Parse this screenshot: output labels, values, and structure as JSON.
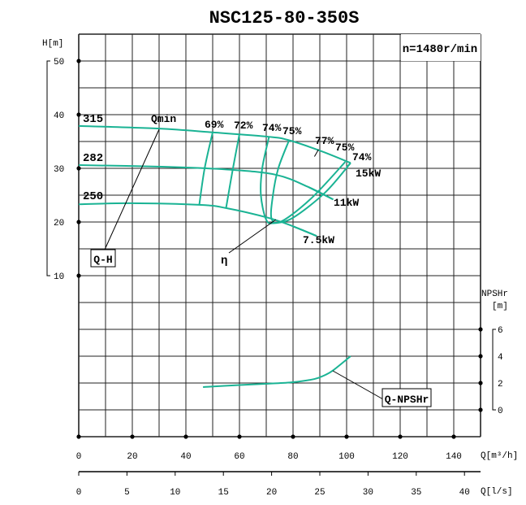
{
  "chart_data": {
    "type": "line",
    "title": "NSC125-80-350S",
    "speed_label": "n=1480r/min",
    "xlabel": "Q[m³/h]",
    "x2label": "Q[l/s]",
    "ylabel": "H[m]",
    "y2label_line1": "NPSHr",
    "y2label_line2": "[m]",
    "xlim": [
      0,
      150
    ],
    "ylim": [
      -20,
      55
    ],
    "x_ticks": [
      0,
      20,
      40,
      60,
      80,
      100,
      120,
      140
    ],
    "x2_ticks": [
      0,
      5,
      10,
      15,
      20,
      25,
      30,
      35,
      40
    ],
    "y_ticks": [
      10,
      20,
      30,
      40,
      50
    ],
    "y2_ticks": [
      0,
      2,
      4,
      6
    ],
    "grid": true,
    "curve_color": "#1ab394",
    "qh_curves": [
      {
        "name": "315",
        "points": [
          [
            0,
            37.9
          ],
          [
            30,
            37.4
          ],
          [
            50,
            36.7
          ],
          [
            70.6,
            35.9
          ],
          [
            78,
            35.3
          ],
          [
            90,
            33.3
          ],
          [
            101.5,
            31.0
          ]
        ]
      },
      {
        "name": "282",
        "points": [
          [
            0,
            30.6
          ],
          [
            31,
            30.3
          ],
          [
            55,
            29.8
          ],
          [
            73.6,
            28.8
          ],
          [
            85.8,
            26.5
          ],
          [
            95,
            24.2
          ]
        ]
      },
      {
        "name": "250",
        "points": [
          [
            0,
            23.3
          ],
          [
            19,
            23.5
          ],
          [
            45,
            23.2
          ],
          [
            55,
            22.6
          ],
          [
            70.6,
            20.8
          ],
          [
            80,
            19.2
          ],
          [
            88.8,
            17.4
          ]
        ]
      }
    ],
    "efficiency_curves": [
      {
        "name": "69%",
        "points": [
          [
            50,
            36.7
          ],
          [
            47,
            30
          ],
          [
            45,
            23.2
          ]
        ]
      },
      {
        "name": "72%",
        "points": [
          [
            60,
            36.4
          ],
          [
            57.5,
            29.8
          ],
          [
            55,
            22.6
          ]
        ]
      },
      {
        "name": "74%",
        "points": [
          [
            71,
            35.8
          ],
          [
            68.5,
            30
          ],
          [
            68,
            25
          ],
          [
            70,
            20.4
          ],
          [
            73,
            19.8
          ],
          [
            80,
            20.8
          ],
          [
            92,
            25.5
          ],
          [
            101.5,
            31.0
          ]
        ]
      },
      {
        "name": "75%",
        "points": [
          [
            78.5,
            35.2
          ],
          [
            74.5,
            30
          ],
          [
            72.5,
            25
          ],
          [
            72,
            20.6
          ],
          [
            76,
            20.2
          ],
          [
            87,
            24.5
          ],
          [
            99.5,
            31.2
          ]
        ]
      },
      {
        "name": "77%",
        "points": [
          [
            89.5,
            33.5
          ],
          [
            88,
            32.2
          ]
        ]
      }
    ],
    "efficiency_labels": [
      "69%",
      "72%",
      "74%",
      "75%",
      "77%",
      "75%",
      "74%"
    ],
    "power_labels": [
      "15kW",
      "11kW",
      "7.5kW"
    ],
    "qmin_label": "Qmin",
    "qh_label": "Q-H",
    "eta_label": "η",
    "npsh_label": "Q-NPSHr",
    "npsh_curve": {
      "points": [
        [
          46.4,
          1.7
        ],
        [
          60,
          1.85
        ],
        [
          70.6,
          1.95
        ],
        [
          80,
          2.06
        ],
        [
          88,
          2.3
        ],
        [
          92,
          2.6
        ],
        [
          95,
          2.95
        ],
        [
          101.5,
          4.0
        ]
      ]
    }
  }
}
